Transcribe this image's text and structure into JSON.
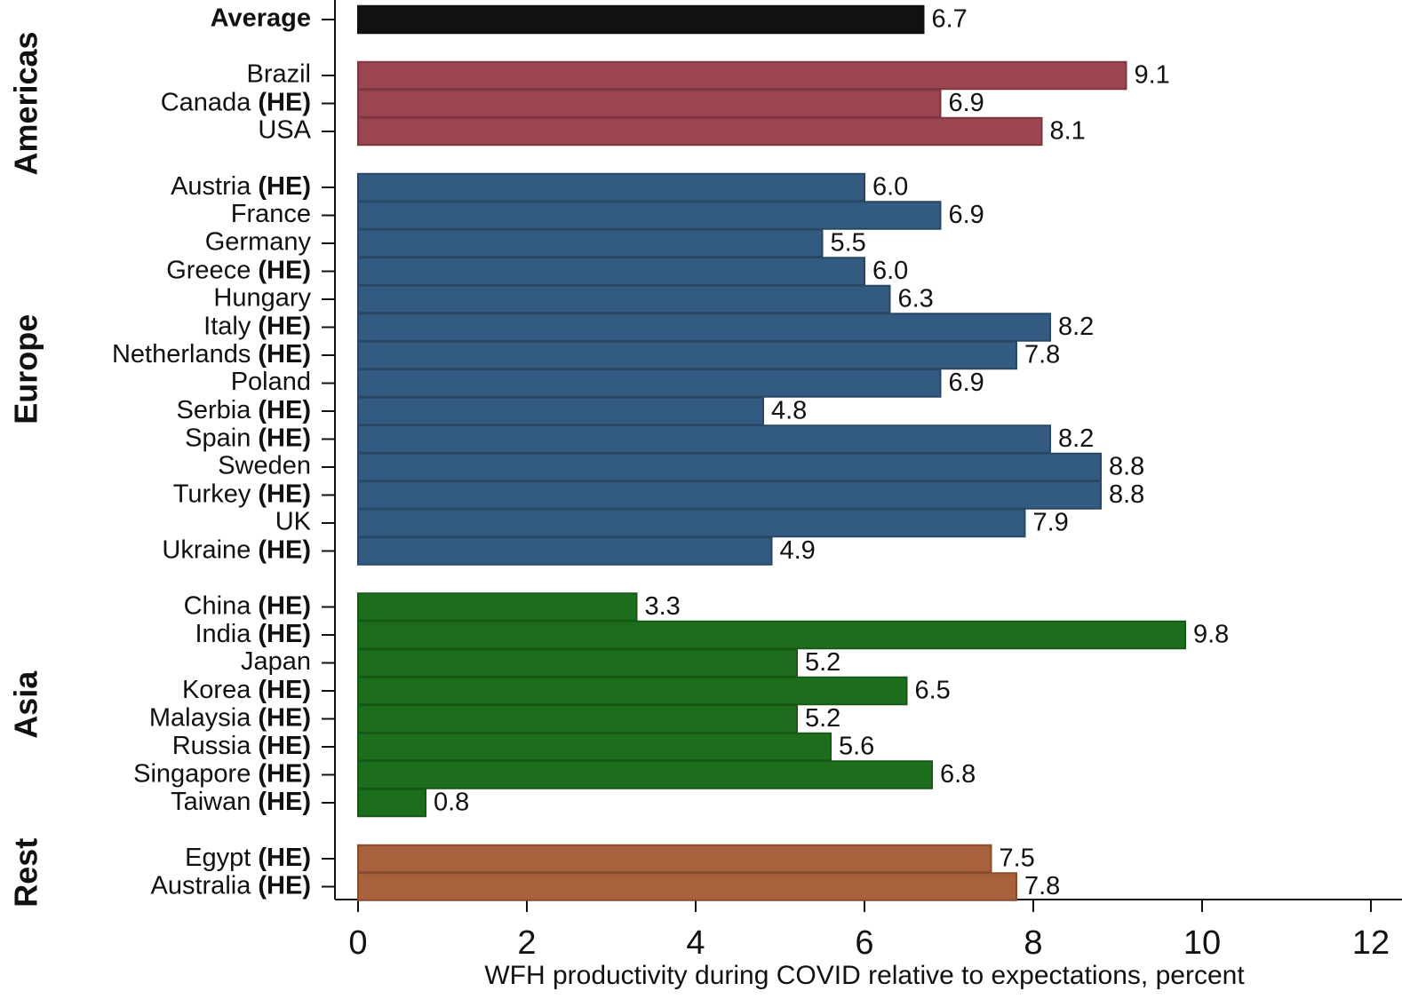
{
  "chart_data": {
    "type": "bar",
    "orientation": "horizontal",
    "xlabel": "WFH productivity during COVID relative to expectations, percent",
    "xlim": [
      0,
      12
    ],
    "xticks": [
      0,
      2,
      4,
      6,
      8,
      10,
      12
    ],
    "groups": [
      {
        "color": "#111111",
        "categories": [
          "Average"
        ],
        "values": [
          6.7
        ],
        "value_labels": [
          "6.7"
        ]
      },
      {
        "name": "Americas",
        "color": "#9b4550",
        "categories": [
          "Brazil",
          "Canada (HE)",
          "USA"
        ],
        "values": [
          9.1,
          6.9,
          8.1
        ],
        "value_labels": [
          "9.1",
          "6.9",
          "8.1"
        ]
      },
      {
        "name": "Europe",
        "color": "#335a80",
        "categories": [
          "Austria (HE)",
          "France",
          "Germany",
          "Greece (HE)",
          "Hungary",
          "Italy (HE)",
          "Netherlands (HE)",
          "Poland",
          "Serbia (HE)",
          "Spain (HE)",
          "Sweden",
          "Turkey (HE)",
          "UK",
          "Ukraine (HE)"
        ],
        "values": [
          6.0,
          6.9,
          5.5,
          6.0,
          6.3,
          8.2,
          7.8,
          6.9,
          4.8,
          8.2,
          8.8,
          8.8,
          7.9,
          4.9
        ],
        "value_labels": [
          "6.0",
          "6.9",
          "5.5",
          "6.0",
          "6.3",
          "8.2",
          "7.8",
          "6.9",
          "4.8",
          "8.2",
          "8.8",
          "8.8",
          "7.9",
          "4.9"
        ]
      },
      {
        "name": "Asia",
        "color": "#1c6e1c",
        "categories": [
          "China (HE)",
          "India (HE)",
          "Japan",
          "Korea (HE)",
          "Malaysia (HE)",
          "Russia (HE)",
          "Singapore (HE)",
          "Taiwan (HE)"
        ],
        "values": [
          3.3,
          9.8,
          5.2,
          6.5,
          5.2,
          5.6,
          6.8,
          0.8
        ],
        "value_labels": [
          "3.3",
          "9.8",
          "5.2",
          "6.5",
          "5.2",
          "5.6",
          "6.8",
          "0.8"
        ]
      },
      {
        "name": "Rest",
        "color": "#a9603c",
        "categories": [
          "Egypt (HE)",
          "Australia (HE)"
        ],
        "values": [
          7.5,
          7.8
        ],
        "value_labels": [
          "7.5",
          "7.8"
        ]
      }
    ]
  }
}
